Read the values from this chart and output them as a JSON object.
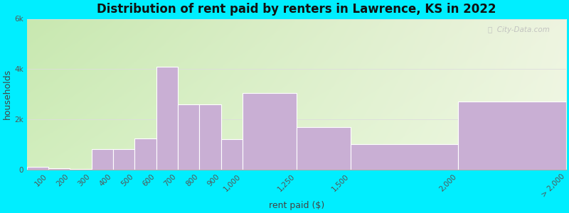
{
  "bin_edges": [
    0,
    100,
    200,
    300,
    400,
    500,
    600,
    700,
    800,
    900,
    1000,
    1250,
    1500,
    2000,
    2500
  ],
  "bin_labels": [
    "100",
    "200",
    "300",
    "400",
    "500",
    "600",
    "700",
    "800",
    "900",
    "1,000",
    "1,250",
    "1,500",
    "2,000",
    "> 2,000"
  ],
  "values": [
    120,
    55,
    30,
    800,
    820,
    1250,
    4100,
    2600,
    2600,
    1200,
    3050,
    1700,
    1000,
    2700
  ],
  "bar_color": "#c9afd4",
  "bar_edgecolor": "#ffffff",
  "title": "Distribution of rent paid by renters in Lawrence, KS in 2022",
  "xlabel": "rent paid ($)",
  "ylabel": "households",
  "ylim": [
    0,
    6000
  ],
  "ytick_labels": [
    "0",
    "2k",
    "4k",
    "6k"
  ],
  "ytick_values": [
    0,
    2000,
    4000,
    6000
  ],
  "background_outer": "#00eeff",
  "background_top_left": "#c8e8b0",
  "background_top_right": "#eef4e0",
  "background_bottom_right": "#e8f0e0",
  "title_fontsize": 12,
  "axis_label_fontsize": 9,
  "tick_fontsize": 7.5,
  "watermark_text": "ⓘ  City-Data.com"
}
